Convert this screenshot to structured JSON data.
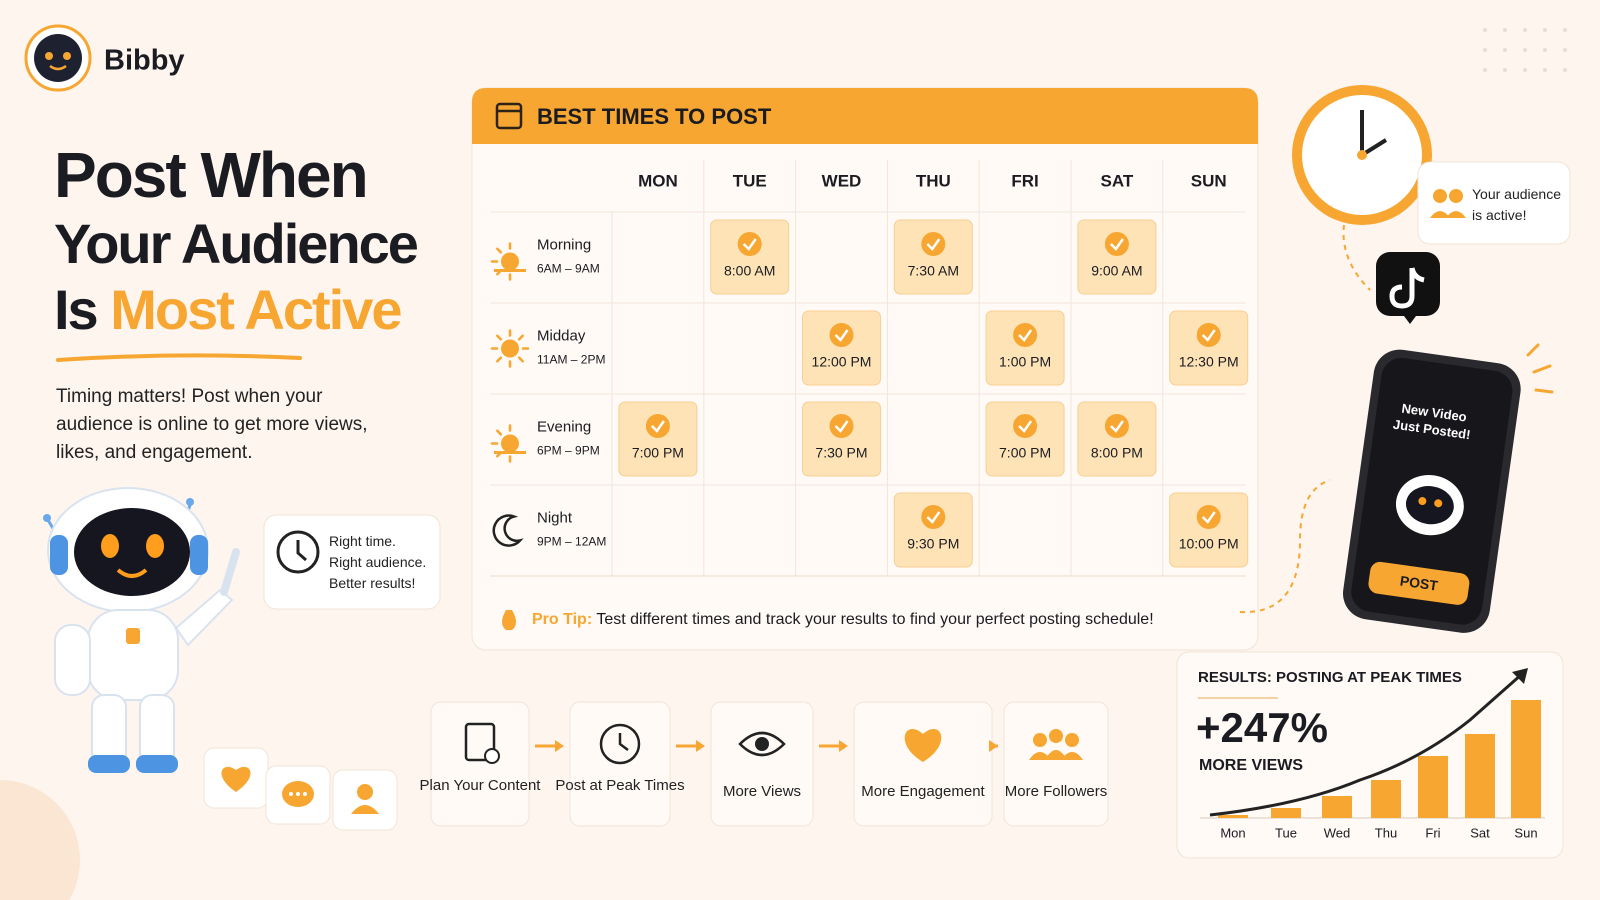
{
  "brand": "Bibby",
  "headline": {
    "line1": "Post When",
    "line2": "Your Audience",
    "line3_prefix": "Is",
    "line3_highlight": "Most Active"
  },
  "description": "Timing matters! Post when your audience is online to get more views, likes, and engagement.",
  "robot_callout": [
    "Right time.",
    "Right audience.",
    "Better results!"
  ],
  "schedule": {
    "title": "BEST TIMES TO POST",
    "days": [
      "MON",
      "TUE",
      "WED",
      "THU",
      "FRI",
      "SAT",
      "SUN"
    ],
    "slots": [
      {
        "label": "Morning",
        "range": "6AM – 9AM",
        "times": [
          null,
          "8:00 AM",
          null,
          "7:30 AM",
          null,
          "9:00 AM",
          null
        ]
      },
      {
        "label": "Midday",
        "range": "11AM – 2PM",
        "times": [
          null,
          null,
          "12:00 PM",
          null,
          "1:00 PM",
          null,
          "12:30 PM"
        ]
      },
      {
        "label": "Evening",
        "range": "6PM – 9PM",
        "times": [
          "7:00 PM",
          null,
          "7:30 PM",
          null,
          "7:00 PM",
          "8:00 PM",
          null
        ]
      },
      {
        "label": "Night",
        "range": "9PM – 12AM",
        "times": [
          null,
          null,
          null,
          "9:30 PM",
          null,
          null,
          "10:00 PM"
        ]
      }
    ],
    "tip_label": "Pro Tip:",
    "tip": "Test different times and track your results to find your perfect posting schedule!"
  },
  "audience_callout": "Your audience is active!",
  "phone": {
    "message": "New Video Just Posted!",
    "button": "POST"
  },
  "flow": [
    "Plan Your Content",
    "Post at Peak Times",
    "More Views",
    "More Engagement",
    "More Followers"
  ],
  "chart_data": {
    "type": "bar",
    "title": "RESULTS: POSTING AT PEAK TIMES",
    "headline": "+247%",
    "subtitle": "MORE VIEWS",
    "categories": [
      "Mon",
      "Tue",
      "Wed",
      "Thu",
      "Fri",
      "Sat",
      "Sun"
    ],
    "values": [
      3,
      10,
      22,
      38,
      62,
      84,
      118
    ],
    "color": "#f7a631"
  }
}
